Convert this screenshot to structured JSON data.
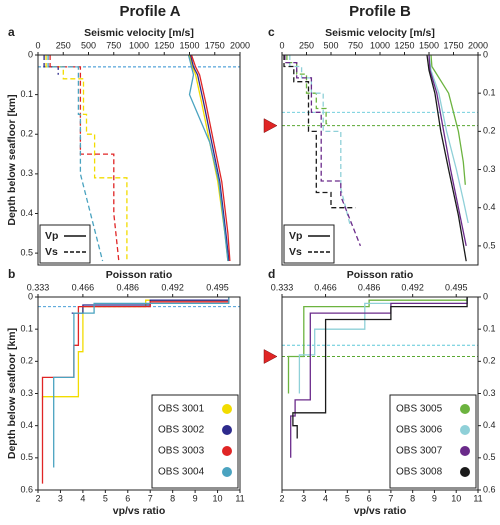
{
  "titles": [
    "Profile A",
    "Profile B"
  ],
  "chart_data": [
    {
      "type": "line",
      "panel_label": "a",
      "xlabel": "Seismic velocity [m/s]",
      "ylabel": "Depth below seafloor [km]",
      "xlim": [
        0,
        2000
      ],
      "ylim": [
        0,
        0.53
      ],
      "xticks": [
        0,
        250,
        500,
        750,
        1000,
        1250,
        1500,
        1750,
        2000
      ],
      "yticks": [
        0,
        0.1,
        0.2,
        0.3,
        0.4,
        0.5
      ],
      "legend": [
        {
          "label": "Vp",
          "dash": false
        },
        {
          "label": "Vs",
          "dash": true
        }
      ],
      "hlines": [
        {
          "value": 0.03,
          "color": "#2f8fd0"
        }
      ],
      "series": [
        {
          "color": "#f2dc00",
          "dash": false,
          "x": [
            1500,
            1530,
            1560,
            1620,
            1700,
            1780,
            1850,
            1880
          ],
          "y": [
            0,
            0.03,
            0.05,
            0.12,
            0.22,
            0.32,
            0.45,
            0.52
          ]
        },
        {
          "color": "#2d2a8c",
          "dash": false,
          "x": [
            1510,
            1540,
            1580,
            1640,
            1720,
            1800,
            1860,
            1890
          ],
          "y": [
            0,
            0.03,
            0.05,
            0.12,
            0.22,
            0.32,
            0.45,
            0.52
          ]
        },
        {
          "color": "#e02525",
          "dash": false,
          "x": [
            1520,
            1560,
            1600,
            1660,
            1740,
            1820,
            1880,
            1900
          ],
          "y": [
            0,
            0.03,
            0.05,
            0.12,
            0.22,
            0.32,
            0.45,
            0.52
          ]
        },
        {
          "color": "#4aa3c0",
          "dash": false,
          "x": [
            1490,
            1520,
            1540,
            1500,
            1700,
            1790,
            1850,
            1880
          ],
          "y": [
            0,
            0.03,
            0.05,
            0.1,
            0.22,
            0.32,
            0.45,
            0.52
          ]
        },
        {
          "color": "#f2dc00",
          "dash": true,
          "x": [
            80,
            80,
            250,
            250,
            450,
            450,
            480,
            480,
            560,
            560,
            880,
            880
          ],
          "y": [
            0,
            0.03,
            0.03,
            0.06,
            0.06,
            0.15,
            0.15,
            0.2,
            0.2,
            0.31,
            0.31,
            0.52
          ]
        },
        {
          "color": "#2d2a8c",
          "dash": true,
          "x": [
            60,
            60,
            200,
            200
          ],
          "y": [
            0,
            0.03,
            0.03,
            0.05
          ]
        },
        {
          "color": "#e02525",
          "dash": true,
          "x": [
            120,
            120,
            420,
            420,
            750,
            750,
            800
          ],
          "y": [
            0,
            0.03,
            0.03,
            0.25,
            0.25,
            0.4,
            0.52
          ]
        },
        {
          "color": "#4aa3c0",
          "dash": true,
          "x": [
            100,
            100,
            400,
            400,
            420,
            420,
            640
          ],
          "y": [
            0,
            0.03,
            0.03,
            0.15,
            0.15,
            0.3,
            0.52
          ]
        }
      ]
    },
    {
      "type": "line",
      "panel_label": "b",
      "xlabel": "vp/vs ratio",
      "x2label": "Poisson ratio",
      "ylabel": "Depth below seafloor [km]",
      "xlim": [
        2,
        11
      ],
      "ylim": [
        0,
        0.6
      ],
      "xticks": [
        2,
        3,
        4,
        5,
        6,
        7,
        8,
        9,
        10,
        11
      ],
      "yticks": [
        0,
        0.1,
        0.2,
        0.3,
        0.4,
        0.5,
        0.6
      ],
      "x2ticks": [
        {
          "value": 2,
          "label": "0.333"
        },
        {
          "value": 4,
          "label": "0.466"
        },
        {
          "value": 6,
          "label": "0.486"
        },
        {
          "value": 8,
          "label": "0.492"
        },
        {
          "value": 10,
          "label": "0.495"
        }
      ],
      "hlines": [
        {
          "value": 0.03,
          "color": "#2f8fd0"
        }
      ],
      "series": [
        {
          "name": "OBS 3001",
          "color": "#f2dc00",
          "x": [
            10.5,
            10.5,
            6.8,
            6.8,
            4.0,
            4.0,
            3.8,
            3.8,
            2.2,
            2.2
          ],
          "y": [
            0,
            0.01,
            0.01,
            0.03,
            0.03,
            0.17,
            0.17,
            0.31,
            0.31,
            0.32
          ]
        },
        {
          "name": "OBS 3002",
          "color": "#2d2a8c",
          "x": [
            10.5,
            10.5,
            7,
            7,
            4,
            4,
            3.5
          ],
          "y": [
            0,
            0.01,
            0.01,
            0.025,
            0.025,
            0.05,
            0.05
          ]
        },
        {
          "name": "OBS 3003",
          "color": "#e02525",
          "x": [
            10.5,
            10.5,
            7,
            7,
            3.8,
            3.8,
            3.6,
            3.6,
            2.2,
            2.2
          ],
          "y": [
            0,
            0.015,
            0.015,
            0.03,
            0.03,
            0.15,
            0.15,
            0.25,
            0.25,
            0.58
          ]
        },
        {
          "name": "OBS 3004",
          "color": "#4aa3c0",
          "x": [
            10.5,
            10.5,
            4.5,
            4.5,
            3.6,
            3.6,
            2.7,
            2.7
          ],
          "y": [
            0,
            0.02,
            0.02,
            0.05,
            0.05,
            0.25,
            0.25,
            0.53
          ]
        }
      ]
    },
    {
      "type": "line",
      "panel_label": "c",
      "xlabel": "Seismic velocity [m/s]",
      "xlim": [
        0,
        2000
      ],
      "ylim": [
        0,
        0.55
      ],
      "xticks": [
        0,
        250,
        500,
        750,
        1000,
        1250,
        1500,
        1750,
        2000
      ],
      "yticks": [
        0,
        0.1,
        0.2,
        0.3,
        0.4,
        0.5
      ],
      "legend": [
        {
          "label": "Vp",
          "dash": false
        },
        {
          "label": "Vs",
          "dash": true
        }
      ],
      "hlines": [
        {
          "value": 0.15,
          "color": "#5fc8d8"
        },
        {
          "value": 0.185,
          "color": "#5aa832"
        }
      ],
      "marker_depth": 0.185,
      "series": [
        {
          "color": "#6cb33f",
          "dash": false,
          "x": [
            1520,
            1530,
            1700,
            1750,
            1800,
            1850,
            1870
          ],
          "y": [
            0,
            0.03,
            0.1,
            0.15,
            0.2,
            0.28,
            0.34
          ]
        },
        {
          "color": "#8fd0d8",
          "dash": false,
          "x": [
            1500,
            1520,
            1600,
            1680,
            1780,
            1850,
            1900
          ],
          "y": [
            0,
            0.04,
            0.1,
            0.2,
            0.3,
            0.38,
            0.44
          ]
        },
        {
          "color": "#6a2a8a",
          "dash": false,
          "x": [
            1500,
            1510,
            1580,
            1650,
            1720,
            1800,
            1880
          ],
          "y": [
            0,
            0.04,
            0.1,
            0.2,
            0.3,
            0.4,
            0.5
          ]
        },
        {
          "color": "#1a1a1a",
          "dash": false,
          "x": [
            1480,
            1500,
            1560,
            1620,
            1700,
            1800,
            1880
          ],
          "y": [
            0,
            0.04,
            0.1,
            0.2,
            0.3,
            0.42,
            0.54
          ]
        },
        {
          "color": "#6cb33f",
          "dash": true,
          "x": [
            50,
            50,
            150,
            150,
            250,
            250,
            350,
            350,
            450,
            450,
            480
          ],
          "y": [
            0,
            0.02,
            0.02,
            0.05,
            0.05,
            0.1,
            0.1,
            0.14,
            0.14,
            0.18,
            0.18
          ]
        },
        {
          "color": "#8fd0d8",
          "dash": true,
          "x": [
            80,
            80,
            200,
            200,
            300,
            300,
            420,
            420,
            600,
            600,
            700
          ],
          "y": [
            0,
            0.03,
            0.03,
            0.06,
            0.06,
            0.1,
            0.1,
            0.2,
            0.2,
            0.35,
            0.45
          ]
        },
        {
          "color": "#6a2a8a",
          "dash": true,
          "x": [
            30,
            30,
            150,
            150,
            300,
            300,
            400,
            400,
            600,
            600,
            800
          ],
          "y": [
            0,
            0.02,
            0.02,
            0.06,
            0.06,
            0.15,
            0.15,
            0.33,
            0.33,
            0.37,
            0.5
          ]
        },
        {
          "color": "#1a1a1a",
          "dash": true,
          "x": [
            20,
            20,
            120,
            120,
            270,
            270,
            350,
            350,
            500,
            500,
            750
          ],
          "y": [
            0,
            0.03,
            0.03,
            0.07,
            0.07,
            0.2,
            0.2,
            0.36,
            0.36,
            0.4,
            0.4
          ]
        }
      ]
    },
    {
      "type": "line",
      "panel_label": "d",
      "xlabel": "vp/vs ratio",
      "x2label": "Poisson ratio",
      "xlim": [
        2,
        11
      ],
      "ylim": [
        0,
        0.6
      ],
      "xticks": [
        2,
        3,
        4,
        5,
        6,
        7,
        8,
        9,
        10,
        11
      ],
      "yticks": [
        0,
        0.1,
        0.2,
        0.3,
        0.4,
        0.5,
        0.6
      ],
      "x2ticks": [
        {
          "value": 2,
          "label": "0.333"
        },
        {
          "value": 4,
          "label": "0.466"
        },
        {
          "value": 6,
          "label": "0.486"
        },
        {
          "value": 8,
          "label": "0.492"
        },
        {
          "value": 10,
          "label": "0.495"
        }
      ],
      "hlines": [
        {
          "value": 0.15,
          "color": "#5fc8d8"
        },
        {
          "value": 0.185,
          "color": "#5aa832"
        }
      ],
      "marker_depth": 0.185,
      "series": [
        {
          "name": "OBS 3005",
          "color": "#6cb33f",
          "x": [
            10.5,
            10.5,
            6,
            6,
            3,
            3,
            2.3,
            2.3
          ],
          "y": [
            0,
            0.01,
            0.01,
            0.03,
            0.03,
            0.185,
            0.185,
            0.3
          ]
        },
        {
          "name": "OBS 3006",
          "color": "#8fd0d8",
          "x": [
            10.5,
            10.5,
            5.8,
            5.8,
            3.5,
            3.5,
            2.8,
            2.8
          ],
          "y": [
            0,
            0.02,
            0.02,
            0.1,
            0.1,
            0.18,
            0.18,
            0.3
          ]
        },
        {
          "name": "OBS 3007",
          "color": "#6a2a8a",
          "x": [
            10.5,
            10.5,
            7,
            7,
            3.3,
            3.3,
            2.6,
            2.6,
            2.4,
            2.4
          ],
          "y": [
            0,
            0.02,
            0.02,
            0.05,
            0.05,
            0.32,
            0.32,
            0.37,
            0.37,
            0.5
          ]
        },
        {
          "name": "OBS 3008",
          "color": "#1a1a1a",
          "x": [
            10.5,
            10.5,
            7,
            7,
            4,
            4,
            2.5,
            2.5,
            2.7,
            2.7
          ],
          "y": [
            0,
            0.03,
            0.03,
            0.07,
            0.07,
            0.36,
            0.36,
            0.4,
            0.4,
            0.44
          ]
        }
      ]
    }
  ]
}
